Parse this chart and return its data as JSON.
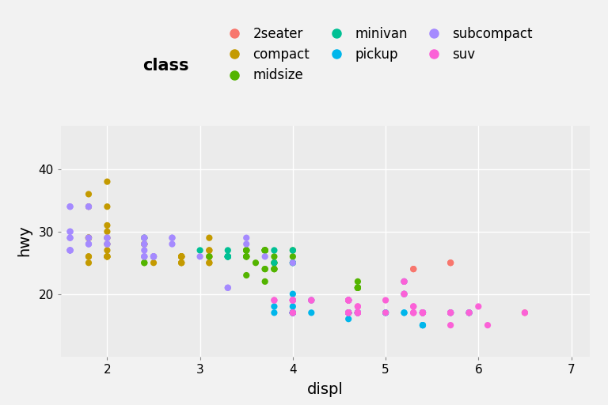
{
  "xlabel": "displ",
  "ylabel": "hwy",
  "legend_title": "class",
  "bg_color": "#EBEBEB",
  "grid_color": "#FFFFFF",
  "fig_bg_color": "#F2F2F2",
  "classes": [
    "2seater",
    "compact",
    "midsize",
    "minivan",
    "pickup",
    "subcompact",
    "suv"
  ],
  "colors": {
    "2seater": "#F8766D",
    "compact": "#C49A00",
    "midsize": "#53B400",
    "minivan": "#00C094",
    "pickup": "#00B6EB",
    "subcompact": "#A58AFF",
    "suv": "#FB61D7"
  },
  "class_data": {
    "2seater": {
      "displ": [
        5.7,
        5.7,
        6.5,
        5.3,
        5.3
      ],
      "hwy": [
        25,
        25,
        17,
        24,
        24
      ]
    },
    "compact": {
      "displ": [
        1.8,
        1.8,
        2.0,
        2.0,
        2.8,
        2.8,
        3.1,
        1.8,
        1.8,
        2.0,
        2.0,
        2.8,
        2.8,
        3.1,
        3.1,
        1.8,
        1.8,
        2.0,
        2.0,
        2.8,
        2.8,
        3.1,
        1.8,
        1.8,
        2.0,
        2.0,
        2.8,
        2.8,
        3.1,
        1.8,
        1.8,
        2.0,
        2.0,
        2.8,
        2.8,
        3.1,
        3.1,
        2.0,
        2.4,
        2.4,
        2.4,
        2.5,
        2.5
      ],
      "hwy": [
        29,
        29,
        31,
        30,
        26,
        26,
        27,
        26,
        25,
        28,
        27,
        25,
        25,
        25,
        25,
        34,
        36,
        34,
        38,
        26,
        26,
        26,
        29,
        29,
        26,
        26,
        25,
        26,
        29,
        26,
        29,
        26,
        26,
        26,
        26,
        26,
        27,
        29,
        28,
        28,
        29,
        26,
        25
      ]
    },
    "midsize": {
      "displ": [
        2.4,
        2.4,
        3.1,
        3.5,
        3.6,
        3.5,
        3.5,
        3.5,
        3.5,
        3.7,
        3.8,
        3.8,
        3.8,
        4.0,
        3.7,
        3.7,
        3.7,
        3.7,
        4.7,
        4.7,
        4.7,
        3.5,
        3.5,
        3.5,
        3.5,
        3.7,
        3.8,
        3.8,
        3.8,
        4.0,
        3.7,
        3.7,
        3.7,
        3.7,
        4.7,
        4.7,
        4.7
      ],
      "hwy": [
        25,
        25,
        26,
        23,
        25,
        26,
        26,
        27,
        27,
        24,
        24,
        24,
        25,
        26,
        27,
        27,
        27,
        27,
        22,
        21,
        21,
        26,
        26,
        27,
        27,
        24,
        24,
        25,
        26,
        27,
        27,
        27,
        27,
        22,
        21,
        21,
        21
      ]
    },
    "minivan": {
      "displ": [
        2.4,
        3.0,
        3.3,
        3.3,
        3.3,
        3.3,
        3.3,
        4.0,
        4.0,
        3.3,
        3.3,
        3.3,
        3.8,
        3.8,
        4.0
      ],
      "hwy": [
        29,
        27,
        27,
        26,
        26,
        26,
        26,
        25,
        27,
        26,
        26,
        26,
        25,
        27,
        25
      ]
    },
    "pickup": {
      "displ": [
        4.7,
        4.7,
        4.7,
        5.2,
        5.2,
        5.7,
        5.9,
        4.7,
        4.7,
        4.7,
        5.2,
        5.2,
        5.7,
        5.9,
        4.6,
        5.4,
        5.4,
        4.0,
        4.0,
        4.0,
        4.0,
        4.6,
        5.0,
        4.2,
        4.2,
        4.6,
        4.6,
        4.6,
        5.4,
        5.4,
        3.8,
        3.8,
        4.0,
        4.0,
        4.6,
        4.6,
        4.6,
        4.6,
        5.4,
        5.4,
        4.0,
        4.0,
        4.0,
        4.0,
        4.6,
        5.0,
        5.4
      ],
      "hwy": [
        17,
        17,
        17,
        17,
        17,
        17,
        17,
        17,
        17,
        17,
        22,
        20,
        17,
        17,
        17,
        15,
        17,
        20,
        17,
        17,
        17,
        17,
        17,
        19,
        17,
        17,
        19,
        19,
        17,
        17,
        17,
        18,
        17,
        18,
        16,
        17,
        17,
        17,
        15,
        15,
        17,
        17,
        17,
        17,
        17,
        17,
        17
      ]
    },
    "subcompact": {
      "displ": [
        1.6,
        1.6,
        1.6,
        1.6,
        1.6,
        1.8,
        1.8,
        1.8,
        2.0,
        2.4,
        2.4,
        2.4,
        2.4,
        2.5,
        2.5,
        3.3,
        2.0,
        2.0,
        2.7,
        2.7,
        2.7,
        3.0,
        3.7,
        4.0,
        1.6,
        1.6,
        1.6,
        1.6,
        1.6,
        1.8,
        1.8,
        1.8,
        2.0,
        2.4,
        2.4,
        2.4,
        2.4,
        2.5,
        2.5,
        3.3,
        2.5,
        3.5,
        3.5
      ],
      "hwy": [
        29,
        27,
        27,
        30,
        34,
        34,
        28,
        29,
        29,
        28,
        28,
        29,
        26,
        26,
        26,
        21,
        28,
        29,
        28,
        29,
        29,
        26,
        26,
        25,
        29,
        27,
        27,
        30,
        34,
        34,
        28,
        29,
        28,
        29,
        26,
        26,
        27,
        26,
        26,
        21,
        26,
        28,
        29
      ]
    },
    "suv": {
      "displ": [
        4.6,
        5.3,
        5.3,
        5.3,
        5.7,
        6.0,
        5.3,
        5.3,
        6.5,
        4.7,
        4.7,
        4.7,
        5.2,
        5.2,
        5.7,
        5.9,
        4.7,
        4.7,
        4.7,
        5.2,
        5.2,
        5.7,
        5.9,
        4.6,
        5.4,
        5.4,
        4.0,
        4.0,
        4.0,
        4.0,
        4.6,
        5.0,
        4.2,
        4.2,
        4.6,
        4.6,
        4.6,
        5.4,
        5.4,
        3.8,
        3.8,
        4.0,
        4.0,
        4.6,
        4.6,
        4.6,
        4.6,
        5.4,
        5.4,
        4.0,
        4.0,
        4.0,
        4.0,
        4.6,
        5.0,
        5.4,
        4.7,
        4.7,
        4.7,
        4.7,
        5.7,
        6.1
      ],
      "hwy": [
        17,
        18,
        17,
        18,
        17,
        18,
        17,
        17,
        17,
        17,
        18,
        17,
        22,
        20,
        17,
        17,
        17,
        18,
        17,
        22,
        20,
        17,
        17,
        19,
        17,
        17,
        19,
        19,
        19,
        19,
        19,
        17,
        19,
        19,
        19,
        19,
        17,
        17,
        17,
        19,
        19,
        19,
        17,
        17,
        19,
        19,
        17,
        17,
        17,
        19,
        19,
        17,
        17,
        17,
        19,
        17,
        17,
        17,
        17,
        17,
        15,
        15
      ]
    }
  },
  "xlim": [
    1.5,
    7.2
  ],
  "ylim": [
    10,
    47
  ],
  "xticks": [
    2,
    3,
    4,
    5,
    6,
    7
  ],
  "yticks": [
    20,
    30,
    40
  ],
  "tick_fontsize": 11,
  "axis_label_fontsize": 14,
  "legend_title_fontsize": 15,
  "legend_fontsize": 12,
  "marker_size": 35
}
